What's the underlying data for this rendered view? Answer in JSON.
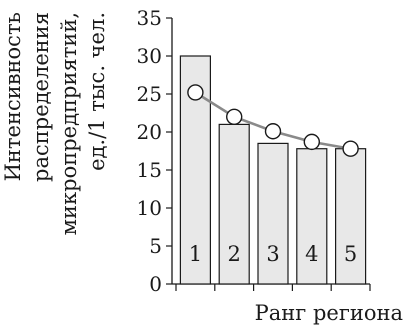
{
  "chart_data": {
    "type": "bar",
    "categories": [
      "1",
      "2",
      "3",
      "4",
      "5"
    ],
    "series": [
      {
        "type": "bar",
        "values": [
          30,
          21,
          18.5,
          17.8,
          17.8
        ]
      },
      {
        "type": "line",
        "values": [
          25.2,
          22,
          20.1,
          18.7,
          17.8
        ]
      }
    ],
    "xlabel": "Ранг региона",
    "ylabel_lines": [
      "Интенсивность",
      "распределения",
      "микропредприятий,",
      "ед./1 тыс. чел."
    ],
    "yticks": [
      0,
      5,
      10,
      15,
      20,
      25,
      30,
      35
    ],
    "ylim": [
      0,
      35
    ],
    "grid": false,
    "colors": {
      "bar_fill": "#e8e8e8",
      "bar_stroke": "#1a1a1a",
      "line": "#8a8a8a",
      "marker_fill": "#ffffff",
      "marker_stroke": "#1a1a1a",
      "axis": "#1a1a1a"
    }
  }
}
